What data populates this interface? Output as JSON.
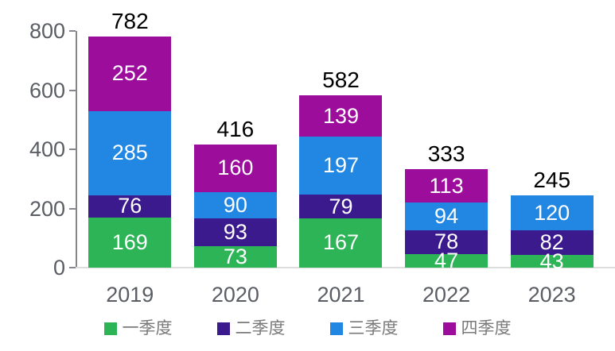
{
  "chart_data": {
    "type": "bar",
    "stacked": true,
    "categories": [
      "2019",
      "2020",
      "2021",
      "2022",
      "2023"
    ],
    "series": [
      {
        "name": "一季度",
        "color": "#2db457",
        "values": [
          169,
          73,
          167,
          47,
          43
        ]
      },
      {
        "name": "二季度",
        "color": "#3a1a8c",
        "values": [
          76,
          93,
          79,
          78,
          82
        ]
      },
      {
        "name": "三季度",
        "color": "#2187e2",
        "values": [
          285,
          90,
          197,
          94,
          120
        ]
      },
      {
        "name": "四季度",
        "color": "#9c0d9c",
        "values": [
          252,
          160,
          139,
          113,
          0
        ]
      }
    ],
    "totals": [
      782,
      416,
      582,
      333,
      245
    ],
    "yticks": [
      0,
      200,
      400,
      600,
      800
    ],
    "ylim": [
      0,
      800
    ],
    "grid": false,
    "legend_position": "bottom"
  },
  "colors": {
    "axis_line": "#85878a",
    "baseline": "#dcdcdc",
    "tick_label": "#5a5d63",
    "legend_text": "#7a7a7a",
    "total_label": "#000000",
    "segment_label": "#ffffff",
    "background": "#ffffff"
  }
}
